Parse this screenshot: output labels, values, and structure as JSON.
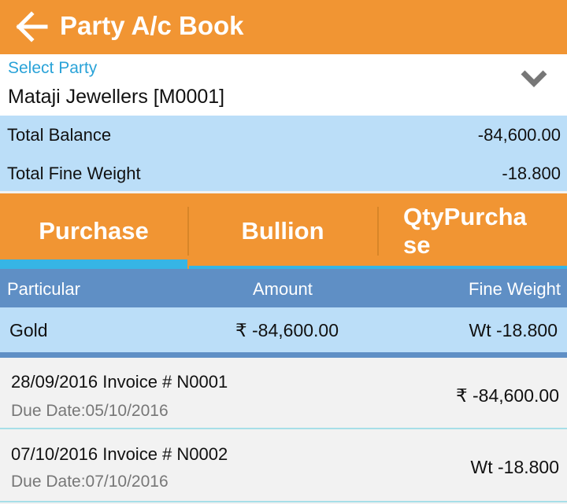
{
  "appbar": {
    "title": "Party A/c Book",
    "back_icon": "arrow-left-icon"
  },
  "party": {
    "label": "Select Party",
    "value": "Mataji Jewellers [M0001]"
  },
  "totals": {
    "balance_label": "Total Balance",
    "balance": "-84,600.00",
    "fine_label": "Total Fine Weight",
    "fine": "-18.800"
  },
  "tabs": [
    {
      "label": "Purchase",
      "selected": true
    },
    {
      "label": "Bullion"
    },
    {
      "label": "QtyPurchase"
    }
  ],
  "table": {
    "headers": [
      "Particular",
      "Amount",
      "Fine Weight"
    ],
    "summary": {
      "particular": "Gold",
      "amount": "₹ -84,600.00",
      "fine": "Wt -18.800"
    }
  },
  "invoices": [
    {
      "title": "28/09/2016 Invoice # N0001",
      "due": "Due Date:05/10/2016",
      "amount": "₹ -84,600.00"
    },
    {
      "title": "07/10/2016 Invoice # N0002",
      "due": "Due Date:07/10/2016",
      "amount": "Wt -18.800"
    }
  ],
  "colors": {
    "primary": "#f19533",
    "accent": "#36b5e5",
    "header": "#5f8fc5",
    "light": "#bbdef8"
  }
}
